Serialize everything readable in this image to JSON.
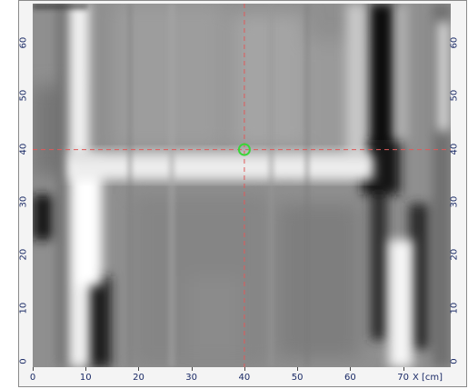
{
  "image": {
    "x_ticks": [
      "0",
      "10",
      "20",
      "30",
      "40",
      "50",
      "60",
      "70"
    ],
    "x_unit": "X [cm]",
    "y_ticks": [
      "0",
      "10",
      "20",
      "30",
      "40",
      "50",
      "60"
    ],
    "crosshair": {
      "x": 40,
      "y": 40
    },
    "x_range": [
      0,
      79
    ],
    "y_range": [
      -1,
      67.5
    ],
    "crosshair_color": "#e05a5a",
    "marker_color": "#39d639"
  }
}
